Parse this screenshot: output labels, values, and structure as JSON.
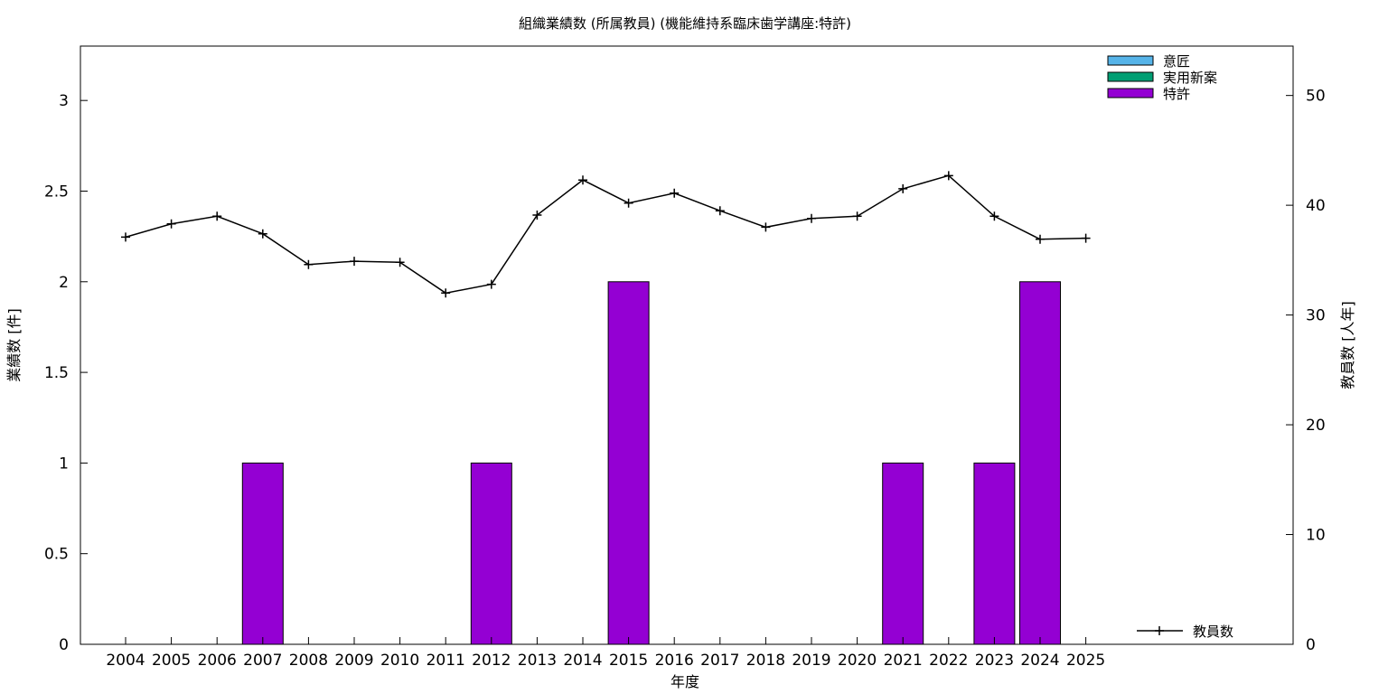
{
  "chart_data": {
    "type": "bar",
    "title": "組織業績数 (所属教員) (機能維持系臨床歯学講座:特許)",
    "xlabel": "年度",
    "ylabel": "業績数 [件]",
    "y2label": "教員数 [人年]",
    "categories": [
      "2004",
      "2005",
      "2006",
      "2007",
      "2008",
      "2009",
      "2010",
      "2011",
      "2012",
      "2013",
      "2014",
      "2015",
      "2016",
      "2017",
      "2018",
      "2019",
      "2020",
      "2021",
      "2022",
      "2023",
      "2024",
      "2025"
    ],
    "ylim": [
      0,
      3.3
    ],
    "yticks": [
      "0",
      "0.5",
      "1",
      "1.5",
      "2",
      "2.5",
      "3"
    ],
    "y2lim": [
      0,
      54.5
    ],
    "y2ticks": [
      "0",
      "10",
      "20",
      "30",
      "40",
      "50"
    ],
    "series": [
      {
        "name": "意匠",
        "kind": "bar",
        "color": "#56b4e9",
        "values": [
          0,
          0,
          0,
          0,
          0,
          0,
          0,
          0,
          0,
          0,
          0,
          0,
          0,
          0,
          0,
          0,
          0,
          0,
          0,
          0,
          0,
          0
        ]
      },
      {
        "name": "実用新案",
        "kind": "bar",
        "color": "#009e73",
        "values": [
          0,
          0,
          0,
          0,
          0,
          0,
          0,
          0,
          0,
          0,
          0,
          0,
          0,
          0,
          0,
          0,
          0,
          0,
          0,
          0,
          0,
          0
        ]
      },
      {
        "name": "特許",
        "kind": "bar",
        "color": "#9400d3",
        "values": [
          0,
          0,
          0,
          1,
          0,
          0,
          0,
          0,
          1,
          0,
          0,
          2,
          0,
          0,
          0,
          0,
          0,
          1,
          0,
          1,
          2,
          0
        ]
      },
      {
        "name": "教員数",
        "kind": "line",
        "axis": "y2",
        "color": "#000000",
        "values": [
          37.1,
          38.3,
          39.0,
          37.4,
          34.6,
          34.9,
          34.8,
          32.0,
          32.8,
          39.1,
          42.3,
          40.2,
          41.1,
          39.5,
          38.0,
          38.8,
          39.0,
          41.5,
          42.7,
          39.0,
          36.9,
          37.0
        ]
      }
    ],
    "legend_position": "top-right",
    "legend2_position": "bottom-right",
    "grid": false
  }
}
